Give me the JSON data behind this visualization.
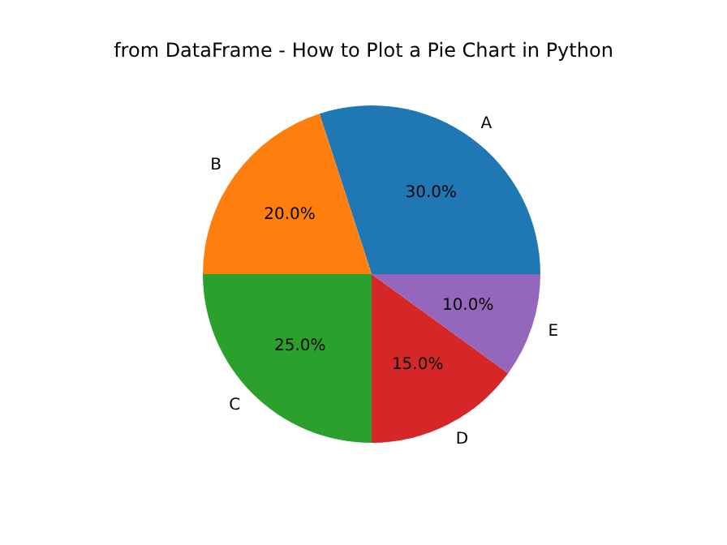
{
  "chart_data": {
    "type": "pie",
    "title": "from DataFrame - How to Plot a Pie Chart in Python",
    "categories": [
      "A",
      "B",
      "C",
      "D",
      "E"
    ],
    "values": [
      30,
      20,
      25,
      15,
      10
    ],
    "colors": [
      "#1f77b4",
      "#ff7f0e",
      "#2ca02c",
      "#d62728",
      "#9467bd"
    ],
    "value_labels": [
      "30.0%",
      "20.0%",
      "25.0%",
      "15.0%",
      "10.0%"
    ]
  }
}
